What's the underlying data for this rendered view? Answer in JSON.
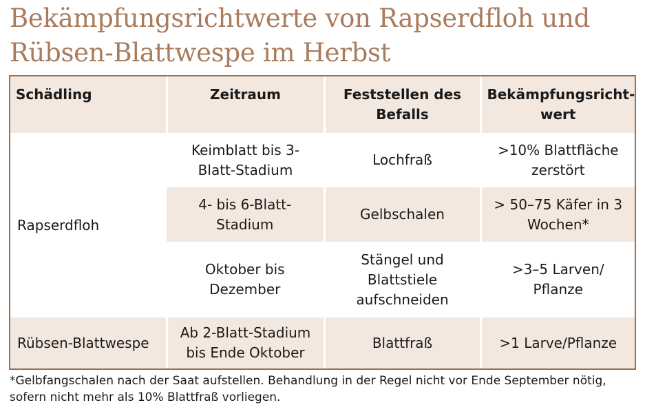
{
  "title": "Bekämpfungsrichtwerte von Rapserdfloh und Rübsen-Blattwespe im Herbst",
  "table": {
    "headers": {
      "pest": "Schädling",
      "period": "Zeitraum",
      "detection": "Feststellen des Befalls",
      "threshold": "Bekämpfungsricht-wert"
    },
    "rapserdfloh": {
      "name": "Rapserdfloh",
      "rows": [
        {
          "period": "Keimblatt bis 3-Blatt-Stadium",
          "detection": "Lochfraß",
          "threshold": ">10% Blattfläche zerstört"
        },
        {
          "period": "4- bis 6-Blatt-Stadium",
          "detection": "Gelbschalen",
          "threshold": "> 50–75 Käfer in 3 Wochen*"
        },
        {
          "period": "Oktober bis Dezember",
          "detection": "Stängel und Blattstiele aufschneiden",
          "threshold": ">3–5 Larven/ Pflanze"
        }
      ]
    },
    "blattwespe": {
      "name": "Rübsen-Blattwespe",
      "period": "Ab 2-Blatt-Stadium bis Ende Oktober",
      "detection": "Blattfraß",
      "threshold": ">1 Larve/Pflanze"
    }
  },
  "footnote": "*Gelbfangschalen nach der Saat aufstellen. Behandlung in der Regel nicht vor Ende September nötig, sofern nicht mehr als 10% Blattfraß vorliegen.",
  "colors": {
    "title": "#a97c5e",
    "border": "#9b6f4f",
    "band": "#f3e8e0"
  }
}
